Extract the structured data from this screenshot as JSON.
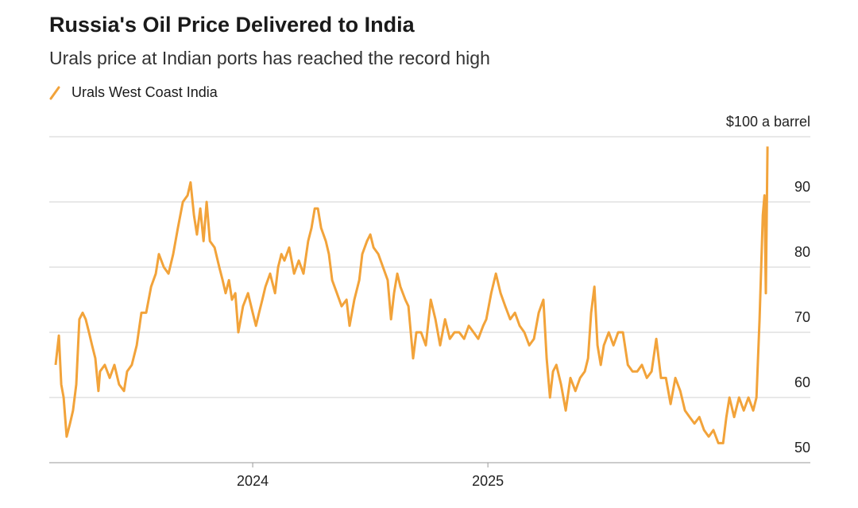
{
  "chart_data": {
    "type": "line",
    "title": "Russia's Oil Price Delivered to India",
    "subtitle": "Urals price at Indian ports has reached the record high",
    "xlim": [
      2023.135,
      2026.371
    ],
    "xticks": [
      2024,
      2025
    ],
    "ylim": [
      50,
      100
    ],
    "yticks": [
      50,
      60,
      70,
      80,
      90,
      {
        "value": 100,
        "label": "$100 a barrel"
      }
    ],
    "grid": true,
    "series": [
      {
        "name": "Urals West Coast India",
        "color": "#f2a33a",
        "x": [
          2023.162,
          2023.176,
          2023.186,
          2023.196,
          2023.209,
          2023.223,
          2023.236,
          2023.25,
          2023.263,
          2023.277,
          2023.29,
          2023.304,
          2023.317,
          2023.331,
          2023.344,
          2023.351,
          2023.371,
          2023.392,
          2023.412,
          2023.432,
          2023.453,
          2023.466,
          2023.486,
          2023.507,
          2023.527,
          2023.547,
          2023.568,
          2023.588,
          2023.601,
          2023.622,
          2023.642,
          2023.662,
          2023.682,
          2023.703,
          2023.723,
          2023.736,
          2023.75,
          2023.763,
          2023.777,
          2023.791,
          2023.804,
          2023.818,
          2023.838,
          2023.858,
          2023.872,
          2023.885,
          2023.899,
          2023.912,
          2023.926,
          2023.939,
          2023.959,
          2023.98,
          2024.0,
          2024.014,
          2024.027,
          2024.041,
          2024.054,
          2024.074,
          2024.095,
          2024.108,
          2024.122,
          2024.135,
          2024.155,
          2024.176,
          2024.196,
          2024.216,
          2024.236,
          2024.25,
          2024.264,
          2024.277,
          2024.291,
          2024.311,
          2024.324,
          2024.338,
          2024.358,
          2024.378,
          2024.399,
          2024.412,
          2024.432,
          2024.453,
          2024.466,
          2024.486,
          2024.5,
          2024.514,
          2024.534,
          2024.554,
          2024.574,
          2024.588,
          2024.601,
          2024.615,
          2024.628,
          2024.649,
          2024.662,
          2024.682,
          2024.696,
          2024.716,
          2024.736,
          2024.757,
          2024.777,
          2024.797,
          2024.818,
          2024.838,
          2024.858,
          2024.878,
          2024.899,
          2024.919,
          2024.939,
          2024.959,
          2024.98,
          2024.993,
          2025.014,
          2025.034,
          2025.054,
          2025.074,
          2025.095,
          2025.115,
          2025.135,
          2025.155,
          2025.176,
          2025.196,
          2025.216,
          2025.236,
          2025.25,
          2025.264,
          2025.277,
          2025.291,
          2025.311,
          2025.331,
          2025.351,
          2025.372,
          2025.392,
          2025.412,
          2025.426,
          2025.439,
          2025.453,
          2025.466,
          2025.48,
          2025.493,
          2025.514,
          2025.534,
          2025.554,
          2025.574,
          2025.595,
          2025.615,
          2025.635,
          2025.655,
          2025.676,
          2025.696,
          2025.716,
          2025.736,
          2025.757,
          2025.777,
          2025.797,
          2025.818,
          2025.838,
          2025.858,
          2025.878,
          2025.899,
          2025.919,
          2025.939,
          2025.959,
          2025.98,
          2026.0,
          2026.014,
          2026.027,
          2026.047,
          2026.068,
          2026.088,
          2026.108,
          2026.128,
          2026.142,
          2026.155,
          2026.169,
          2026.176,
          2026.182,
          2026.189
        ],
        "values": [
          65,
          69.5,
          62,
          60,
          54,
          56,
          58,
          62,
          72,
          73,
          72,
          70,
          68,
          66,
          61,
          64,
          65,
          63,
          65,
          62,
          61,
          64,
          65,
          68,
          73,
          73,
          77,
          79,
          82,
          80,
          79,
          82,
          86,
          90,
          91,
          93,
          88,
          85,
          89,
          84,
          90,
          84,
          83,
          80,
          78,
          76,
          78,
          75,
          76,
          70,
          74,
          76,
          73,
          71,
          73,
          75,
          77,
          79,
          76,
          80,
          82,
          81,
          83,
          79,
          81,
          79,
          84,
          86,
          89,
          89,
          86,
          84,
          82,
          78,
          76,
          74,
          75,
          71,
          75,
          78,
          82,
          84,
          85,
          83,
          82,
          80,
          78,
          72,
          76,
          79,
          77,
          75,
          74,
          66,
          70,
          70,
          68,
          75,
          72,
          68,
          72,
          69,
          70,
          70,
          69,
          71,
          70,
          69,
          71,
          72,
          76,
          79,
          76,
          74,
          72,
          73,
          71,
          70,
          68,
          69,
          73,
          75,
          66,
          60,
          64,
          65,
          62,
          58,
          63,
          61,
          63,
          64,
          66,
          73,
          77,
          68,
          65,
          68,
          70,
          68,
          70,
          70,
          65,
          64,
          64,
          65,
          63,
          64,
          69,
          63,
          63,
          59,
          63,
          61,
          58,
          57,
          56,
          57,
          55,
          54,
          55,
          53,
          53,
          57,
          60,
          57,
          60,
          58,
          60,
          58,
          60,
          72,
          88,
          91,
          76,
          98.5
        ]
      }
    ]
  }
}
